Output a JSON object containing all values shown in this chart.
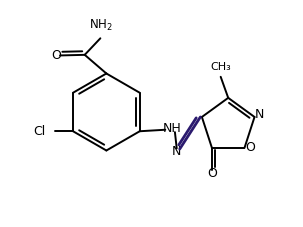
{
  "background_color": "#ffffff",
  "line_color": "#000000",
  "double_bond_color": "#2b1a6e",
  "figsize": [
    3.03,
    2.27
  ],
  "dpi": 100,
  "xlim": [
    0,
    10
  ],
  "ylim": [
    0,
    7.5
  ]
}
